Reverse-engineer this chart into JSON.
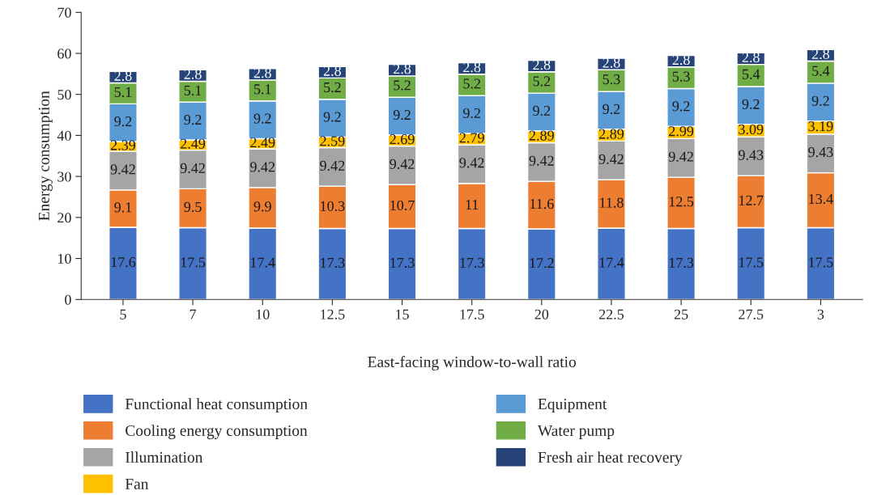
{
  "chart_data": {
    "type": "bar",
    "stacked": true,
    "xlabel": "East-facing window-to-wall ratio",
    "ylabel": "Energy consumption",
    "categories": [
      "5",
      "7",
      "10",
      "12.5",
      "15",
      "17.5",
      "20",
      "22.5",
      "25",
      "27.5",
      "3"
    ],
    "ylim": [
      0,
      70
    ],
    "yticks": [
      0,
      10,
      20,
      30,
      40,
      50,
      60,
      70
    ],
    "data_labels": true,
    "legend": "bottom",
    "grid": false,
    "series": [
      {
        "name": "Functional heat consumption",
        "color": "#4472c4",
        "values": [
          17.6,
          17.5,
          17.4,
          17.3,
          17.3,
          17.3,
          17.2,
          17.4,
          17.3,
          17.5,
          17.5
        ]
      },
      {
        "name": "Cooling energy consumption",
        "color": "#ed7d31",
        "values": [
          9.1,
          9.5,
          9.9,
          10.3,
          10.7,
          11,
          11.6,
          11.8,
          12.5,
          12.7,
          13.4
        ]
      },
      {
        "name": "Illumination",
        "color": "#a5a5a5",
        "values": [
          9.42,
          9.42,
          9.42,
          9.42,
          9.42,
          9.42,
          9.42,
          9.42,
          9.42,
          9.43,
          9.43
        ]
      },
      {
        "name": "Fan",
        "color": "#ffc000",
        "values": [
          2.39,
          2.49,
          2.49,
          2.59,
          2.69,
          2.79,
          2.89,
          2.89,
          2.99,
          3.09,
          3.19
        ]
      },
      {
        "name": "Equipment",
        "color": "#5b9bd5",
        "values": [
          9.2,
          9.2,
          9.2,
          9.2,
          9.2,
          9.2,
          9.2,
          9.2,
          9.2,
          9.2,
          9.2
        ]
      },
      {
        "name": "Water pump",
        "color": "#70ad47",
        "values": [
          5.1,
          5.1,
          5.1,
          5.2,
          5.2,
          5.2,
          5.2,
          5.3,
          5.3,
          5.4,
          5.4
        ]
      },
      {
        "name": "Fresh air heat recovery",
        "color": "#264478",
        "values": [
          2.8,
          2.8,
          2.8,
          2.8,
          2.8,
          2.8,
          2.8,
          2.8,
          2.8,
          2.8,
          2.8
        ]
      }
    ]
  }
}
